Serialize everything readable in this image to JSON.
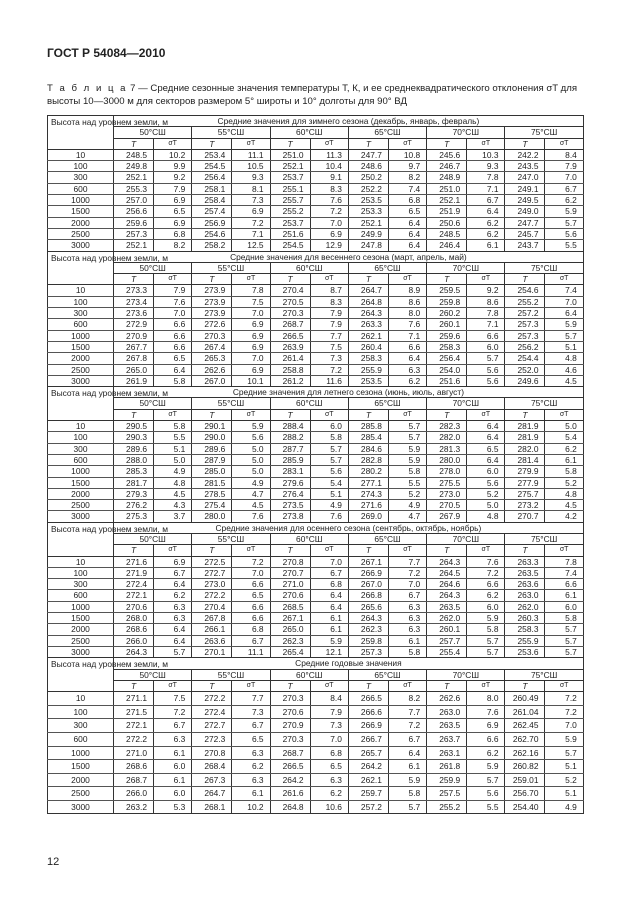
{
  "header": "ГОСТ Р 54084—2010",
  "caption": {
    "label": "Т а б л и ц а",
    "text": "7 — Средние сезонные значения температуры T, К, и ее среднеквадратического отклонения σT для высоты 10—3000 м для секторов размером 5° широты и 10° долготы для 90° ВД"
  },
  "table": {
    "height_header": "Высота над уровнем земли, м",
    "latitudes": [
      "50°СШ",
      "55°СШ",
      "60°СШ",
      "65°СШ",
      "70°СШ",
      "75°СШ"
    ],
    "col_T": "T",
    "col_sigma": "σT",
    "heights": [
      "10",
      "100",
      "300",
      "600",
      "1000",
      "1500",
      "2000",
      "2500",
      "3000"
    ],
    "blocks": [
      {
        "title": "Средние значения для зимнего сезона (декабрь, январь, февраль)",
        "rows": [
          [
            "248.5",
            "10.2",
            "253.4",
            "11.1",
            "251.0",
            "11.3",
            "247.7",
            "10.8",
            "245.6",
            "10.3",
            "242.2",
            "8.4"
          ],
          [
            "249.8",
            "9.9",
            "254.5",
            "10.5",
            "252.1",
            "10.4",
            "248.6",
            "9.7",
            "246.7",
            "9.3",
            "243.5",
            "7.9"
          ],
          [
            "252.1",
            "9.2",
            "256.4",
            "9.3",
            "253.7",
            "9.1",
            "250.2",
            "8.2",
            "248.9",
            "7.8",
            "247.0",
            "7.0"
          ],
          [
            "255.3",
            "7.9",
            "258.1",
            "8.1",
            "255.1",
            "8.3",
            "252.2",
            "7.4",
            "251.0",
            "7.1",
            "249.1",
            "6.7"
          ],
          [
            "257.0",
            "6.9",
            "258.4",
            "7.3",
            "255.7",
            "7.6",
            "253.5",
            "6.8",
            "252.1",
            "6.7",
            "249.5",
            "6.2"
          ],
          [
            "256.6",
            "6.5",
            "257.4",
            "6.9",
            "255.2",
            "7.2",
            "253.3",
            "6.5",
            "251.9",
            "6.4",
            "249.0",
            "5.9"
          ],
          [
            "259.6",
            "6.9",
            "256.9",
            "7.2",
            "253.7",
            "7.0",
            "252.1",
            "6.4",
            "250.6",
            "6.2",
            "247.7",
            "5.7"
          ],
          [
            "257.3",
            "6.8",
            "254.6",
            "7.1",
            "251.6",
            "6.9",
            "249.9",
            "6.4",
            "248.5",
            "6.2",
            "245.7",
            "5.6"
          ],
          [
            "252.1",
            "8.2",
            "258.2",
            "12.5",
            "254.5",
            "12.9",
            "247.8",
            "6.4",
            "246.4",
            "6.1",
            "243.7",
            "5.5"
          ]
        ]
      },
      {
        "title": "Средние значения для весеннего сезона (март, апрель, май)",
        "rows": [
          [
            "273.3",
            "7.9",
            "273.9",
            "7.8",
            "270.4",
            "8.7",
            "264.7",
            "8.9",
            "259.5",
            "9.2",
            "254.6",
            "7.4"
          ],
          [
            "273.4",
            "7.6",
            "273.9",
            "7.5",
            "270.5",
            "8.3",
            "264.8",
            "8.6",
            "259.8",
            "8.6",
            "255.2",
            "7.0"
          ],
          [
            "273.6",
            "7.0",
            "273.9",
            "7.0",
            "270.3",
            "7.9",
            "264.3",
            "8.0",
            "260.2",
            "7.8",
            "257.2",
            "6.4"
          ],
          [
            "272.9",
            "6.6",
            "272.6",
            "6.9",
            "268.7",
            "7.9",
            "263.3",
            "7.6",
            "260.1",
            "7.1",
            "257.3",
            "5.9"
          ],
          [
            "270.9",
            "6.6",
            "270.3",
            "6.9",
            "266.5",
            "7.7",
            "262.1",
            "7.1",
            "259.6",
            "6.6",
            "257.3",
            "5.7"
          ],
          [
            "267.7",
            "6.6",
            "267.4",
            "6.9",
            "263.9",
            "7.5",
            "260.4",
            "6.6",
            "258.3",
            "6.0",
            "256.2",
            "5.1"
          ],
          [
            "267.8",
            "6.5",
            "265.3",
            "7.0",
            "261.4",
            "7.3",
            "258.3",
            "6.4",
            "256.4",
            "5.7",
            "254.4",
            "4.8"
          ],
          [
            "265.0",
            "6.4",
            "262.6",
            "6.9",
            "258.8",
            "7.2",
            "255.9",
            "6.3",
            "254.0",
            "5.6",
            "252.0",
            "4.6"
          ],
          [
            "261.9",
            "5.8",
            "267.0",
            "10.1",
            "261.2",
            "11.6",
            "253.5",
            "6.2",
            "251.6",
            "5.6",
            "249.6",
            "4.5"
          ]
        ]
      },
      {
        "title": "Средние значения для летнего сезона (июнь, июль, август)",
        "rows": [
          [
            "290.5",
            "5.8",
            "290.1",
            "5.9",
            "288.4",
            "6.0",
            "285.8",
            "5.7",
            "282.3",
            "6.4",
            "281.9",
            "5.0"
          ],
          [
            "290.3",
            "5.5",
            "290.0",
            "5.6",
            "288.2",
            "5.8",
            "285.4",
            "5.7",
            "282.0",
            "6.4",
            "281.9",
            "5.4"
          ],
          [
            "289.6",
            "5.1",
            "289.6",
            "5.0",
            "287.7",
            "5.7",
            "284.6",
            "5.9",
            "281.3",
            "6.5",
            "282.0",
            "6.2"
          ],
          [
            "288.0",
            "5.0",
            "287.9",
            "5.0",
            "285.9",
            "5.7",
            "282.8",
            "5.9",
            "280.0",
            "6.4",
            "281.4",
            "6.1"
          ],
          [
            "285.3",
            "4.9",
            "285.0",
            "5.0",
            "283.1",
            "5.6",
            "280.2",
            "5.8",
            "278.0",
            "6.0",
            "279.9",
            "5.8"
          ],
          [
            "281.7",
            "4.8",
            "281.5",
            "4.9",
            "279.6",
            "5.4",
            "277.1",
            "5.5",
            "275.5",
            "5.6",
            "277.9",
            "5.2"
          ],
          [
            "279.3",
            "4.5",
            "278.5",
            "4.7",
            "276.4",
            "5.1",
            "274.3",
            "5.2",
            "273.0",
            "5.2",
            "275.7",
            "4.8"
          ],
          [
            "276.2",
            "4.3",
            "275.4",
            "4.5",
            "273.5",
            "4.9",
            "271.6",
            "4.9",
            "270.5",
            "5.0",
            "273.2",
            "4.5"
          ],
          [
            "275.3",
            "3.7",
            "280.0",
            "7.6",
            "273.8",
            "7.6",
            "269.0",
            "4.7",
            "267.9",
            "4.8",
            "270.7",
            "4.2"
          ]
        ]
      },
      {
        "title": "Средние значения для осеннего сезона (сентябрь, октябрь, ноябрь)",
        "rows": [
          [
            "271.6",
            "6.9",
            "272.5",
            "7.2",
            "270.8",
            "7.0",
            "267.1",
            "7.7",
            "264.3",
            "7.6",
            "263.3",
            "7.8"
          ],
          [
            "271.9",
            "6.7",
            "272.7",
            "7.0",
            "270.7",
            "6.7",
            "266.9",
            "7.2",
            "264.5",
            "7.2",
            "263.5",
            "7.4"
          ],
          [
            "272.4",
            "6.4",
            "273.0",
            "6.6",
            "271.0",
            "6.8",
            "267.0",
            "7.0",
            "264.6",
            "6.6",
            "263.6",
            "6.6"
          ],
          [
            "272.1",
            "6.2",
            "272.2",
            "6.5",
            "270.6",
            "6.4",
            "266.8",
            "6.7",
            "264.3",
            "6.2",
            "263.0",
            "6.1"
          ],
          [
            "270.6",
            "6.3",
            "270.4",
            "6.6",
            "268.5",
            "6.4",
            "265.6",
            "6.3",
            "263.5",
            "6.0",
            "262.0",
            "6.0"
          ],
          [
            "268.0",
            "6.3",
            "267.8",
            "6.6",
            "267.1",
            "6.1",
            "264.3",
            "6.3",
            "262.0",
            "5.9",
            "260.3",
            "5.8"
          ],
          [
            "268.6",
            "6.4",
            "266.1",
            "6.8",
            "265.0",
            "6.1",
            "262.3",
            "6.3",
            "260.1",
            "5.8",
            "258.3",
            "5.7"
          ],
          [
            "266.0",
            "6.4",
            "263.6",
            "6.7",
            "262.3",
            "5.9",
            "259.8",
            "6.1",
            "257.7",
            "5.7",
            "255.9",
            "5.7"
          ],
          [
            "264.3",
            "5.7",
            "270.1",
            "11.1",
            "265.4",
            "12.1",
            "257.3",
            "5.8",
            "255.4",
            "5.7",
            "253.6",
            "5.7"
          ]
        ]
      },
      {
        "title": "Средние годовые значения",
        "rows": [
          [
            "271.1",
            "7.5",
            "272.2",
            "7.7",
            "270.3",
            "8.4",
            "266.5",
            "8.2",
            "262.6",
            "8.0",
            "260.49",
            "7.2"
          ],
          [
            "271.5",
            "7.2",
            "272.4",
            "7.3",
            "270.6",
            "7.9",
            "266.6",
            "7.7",
            "263.0",
            "7.6",
            "261.04",
            "7.2"
          ],
          [
            "272.1",
            "6.7",
            "272.7",
            "6.7",
            "270.9",
            "7.3",
            "266.9",
            "7.2",
            "263.5",
            "6.9",
            "262.45",
            "7.0"
          ],
          [
            "272.2",
            "6.3",
            "272.3",
            "6.5",
            "270.3",
            "7.0",
            "266.7",
            "6.7",
            "263.7",
            "6.6",
            "262.70",
            "5.9"
          ],
          [
            "271.0",
            "6.1",
            "270.8",
            "6.3",
            "268.7",
            "6.8",
            "265.7",
            "6.4",
            "263.1",
            "6.2",
            "262.16",
            "5.7"
          ],
          [
            "268.6",
            "6.0",
            "268.4",
            "6.2",
            "266.5",
            "6.5",
            "264.2",
            "6.1",
            "261.8",
            "5.9",
            "260.82",
            "5.1"
          ],
          [
            "268.7",
            "6.1",
            "267.3",
            "6.3",
            "264.2",
            "6.3",
            "262.1",
            "5.9",
            "259.9",
            "5.7",
            "259.01",
            "5.2"
          ],
          [
            "266.0",
            "6.0",
            "264.7",
            "6.1",
            "261.6",
            "6.2",
            "259.7",
            "5.8",
            "257.5",
            "5.6",
            "256.70",
            "5.1"
          ],
          [
            "263.2",
            "5.3",
            "268.1",
            "10.2",
            "264.8",
            "10.6",
            "257.2",
            "5.7",
            "255.2",
            "5.5",
            "254.40",
            "4.9"
          ]
        ]
      }
    ]
  },
  "page_number": "12"
}
